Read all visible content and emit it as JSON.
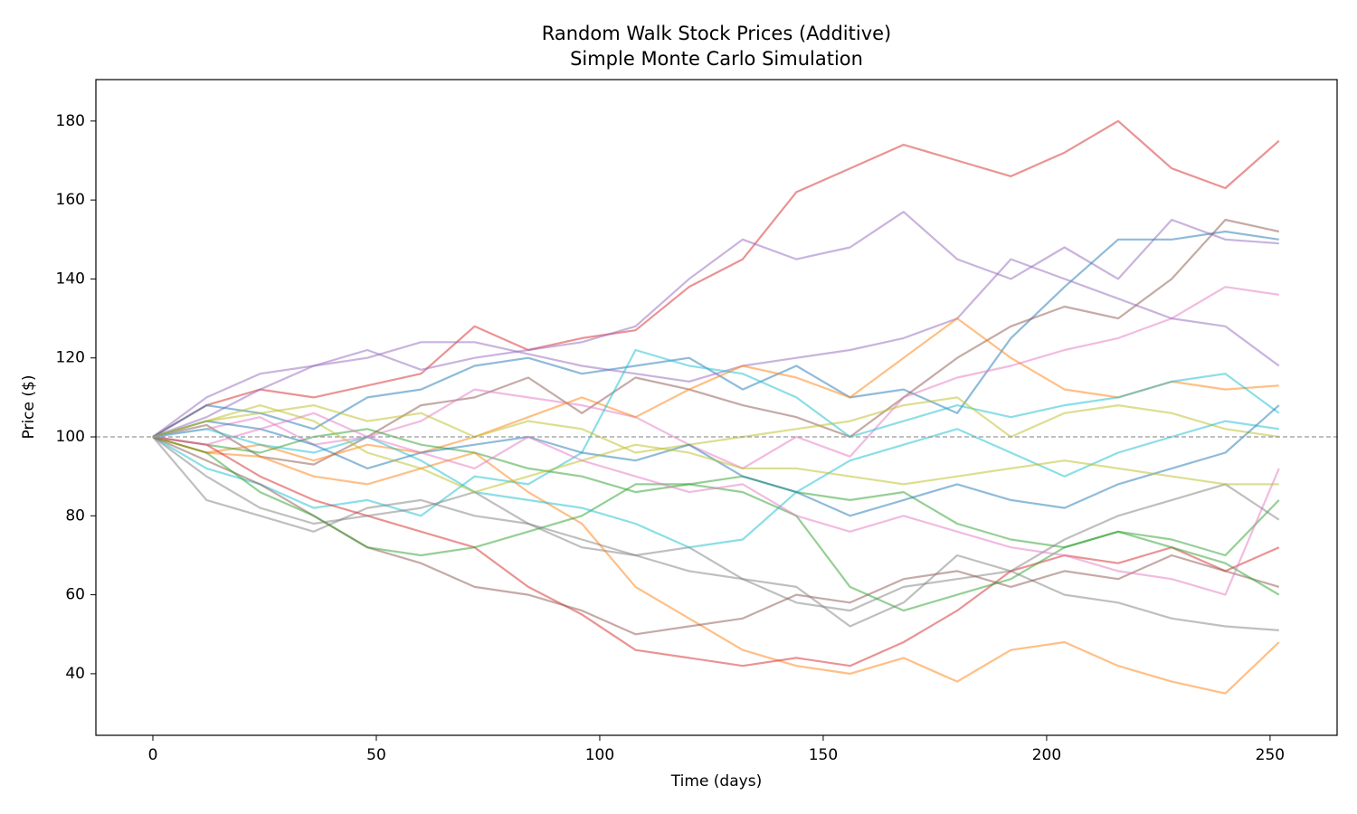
{
  "chart_data": {
    "type": "line",
    "title": "Random Walk Stock Prices (Additive)",
    "subtitle": "Simple Monte Carlo Simulation",
    "x_label": "Time (days)",
    "y_label": "Price ($)",
    "xlim": [
      -12.75,
      265
    ],
    "ylim": [
      24.4,
      190.5
    ],
    "xticks": [
      0,
      50,
      100,
      150,
      200,
      250
    ],
    "yticks": [
      40,
      60,
      80,
      100,
      120,
      140,
      160,
      180
    ],
    "hline": 100,
    "hline_color": "#999999",
    "alpha": 0.5,
    "x": [
      0,
      12,
      24,
      36,
      48,
      60,
      72,
      84,
      96,
      108,
      120,
      132,
      144,
      156,
      168,
      180,
      192,
      204,
      216,
      228,
      240,
      252
    ],
    "series": [
      {
        "color": "#d62728",
        "values": [
          100,
          108,
          112,
          110,
          113,
          116,
          128,
          122,
          125,
          127,
          138,
          145,
          162,
          168,
          174,
          170,
          166,
          172,
          180,
          168,
          163,
          175
        ]
      },
      {
        "color": "#9467bd",
        "values": [
          100,
          105,
          112,
          118,
          122,
          117,
          120,
          122,
          124,
          128,
          140,
          150,
          145,
          148,
          157,
          145,
          140,
          148,
          140,
          155,
          150,
          149
        ]
      },
      {
        "color": "#1f77b4",
        "values": [
          100,
          108,
          106,
          102,
          110,
          112,
          118,
          120,
          116,
          118,
          120,
          112,
          118,
          110,
          112,
          106,
          125,
          138,
          150,
          150,
          152,
          150
        ]
      },
      {
        "color": "#8c564b",
        "values": [
          100,
          103,
          95,
          93,
          100,
          108,
          110,
          115,
          106,
          115,
          112,
          108,
          105,
          100,
          110,
          120,
          128,
          133,
          130,
          140,
          155,
          152
        ]
      },
      {
        "color": "#e377c2",
        "values": [
          100,
          102,
          105,
          98,
          100,
          104,
          112,
          110,
          108,
          105,
          98,
          92,
          100,
          95,
          110,
          115,
          118,
          122,
          125,
          130,
          138,
          136
        ]
      },
      {
        "color": "#9467bd",
        "values": [
          100,
          110,
          116,
          118,
          120,
          124,
          124,
          121,
          118,
          116,
          114,
          118,
          120,
          122,
          125,
          130,
          145,
          140,
          135,
          130,
          128,
          118
        ]
      },
      {
        "color": "#ff7f0e",
        "values": [
          100,
          96,
          98,
          94,
          98,
          96,
          100,
          105,
          110,
          105,
          112,
          118,
          115,
          110,
          120,
          130,
          120,
          112,
          110,
          114,
          112,
          113
        ]
      },
      {
        "color": "#17becf",
        "values": [
          100,
          92,
          88,
          82,
          84,
          80,
          90,
          88,
          96,
          122,
          118,
          116,
          110,
          100,
          104,
          108,
          105,
          108,
          110,
          114,
          116,
          106
        ]
      },
      {
        "color": "#bcbd22",
        "values": [
          100,
          104,
          106,
          108,
          104,
          106,
          100,
          104,
          102,
          96,
          98,
          100,
          102,
          104,
          108,
          110,
          100,
          106,
          108,
          106,
          102,
          100
        ]
      },
      {
        "color": "#2ca02c",
        "values": [
          100,
          98,
          96,
          100,
          102,
          98,
          96,
          92,
          90,
          86,
          88,
          90,
          86,
          84,
          86,
          78,
          74,
          72,
          76,
          74,
          70,
          84
        ]
      },
      {
        "color": "#7f7f7f",
        "values": [
          100,
          84,
          80,
          76,
          82,
          84,
          80,
          78,
          72,
          70,
          72,
          64,
          58,
          56,
          62,
          64,
          66,
          60,
          58,
          54,
          52,
          51
        ]
      },
      {
        "color": "#ff7f0e",
        "values": [
          100,
          96,
          95,
          90,
          88,
          92,
          96,
          86,
          78,
          62,
          54,
          46,
          42,
          40,
          44,
          38,
          46,
          48,
          42,
          38,
          35,
          48
        ]
      },
      {
        "color": "#d62728",
        "values": [
          100,
          98,
          90,
          84,
          80,
          76,
          72,
          62,
          55,
          46,
          44,
          42,
          44,
          42,
          48,
          56,
          66,
          70,
          68,
          72,
          66,
          72
        ]
      },
      {
        "color": "#8c564b",
        "values": [
          100,
          94,
          88,
          80,
          72,
          68,
          62,
          60,
          56,
          50,
          52,
          54,
          60,
          58,
          64,
          66,
          62,
          66,
          64,
          70,
          66,
          62
        ]
      },
      {
        "color": "#2ca02c",
        "values": [
          100,
          96,
          86,
          80,
          72,
          70,
          72,
          76,
          80,
          88,
          88,
          86,
          80,
          62,
          56,
          60,
          64,
          72,
          76,
          72,
          68,
          60
        ]
      },
      {
        "color": "#7f7f7f",
        "values": [
          100,
          90,
          82,
          78,
          80,
          82,
          86,
          78,
          74,
          70,
          66,
          64,
          62,
          52,
          58,
          70,
          66,
          74,
          80,
          84,
          88,
          79
        ]
      },
      {
        "color": "#17becf",
        "values": [
          100,
          102,
          98,
          96,
          100,
          94,
          86,
          84,
          82,
          78,
          72,
          74,
          86,
          94,
          98,
          102,
          96,
          90,
          96,
          100,
          104,
          102
        ]
      },
      {
        "color": "#1f77b4",
        "values": [
          100,
          104,
          102,
          98,
          92,
          96,
          98,
          100,
          96,
          94,
          98,
          90,
          86,
          80,
          84,
          88,
          84,
          82,
          88,
          92,
          96,
          108
        ]
      },
      {
        "color": "#e377c2",
        "values": [
          100,
          98,
          102,
          106,
          100,
          96,
          92,
          100,
          94,
          90,
          86,
          88,
          80,
          76,
          80,
          76,
          72,
          70,
          66,
          64,
          60,
          92
        ]
      },
      {
        "color": "#bcbd22",
        "values": [
          100,
          104,
          108,
          104,
          96,
          92,
          86,
          90,
          94,
          98,
          96,
          92,
          92,
          90,
          88,
          90,
          92,
          94,
          92,
          90,
          88,
          88
        ]
      }
    ]
  }
}
